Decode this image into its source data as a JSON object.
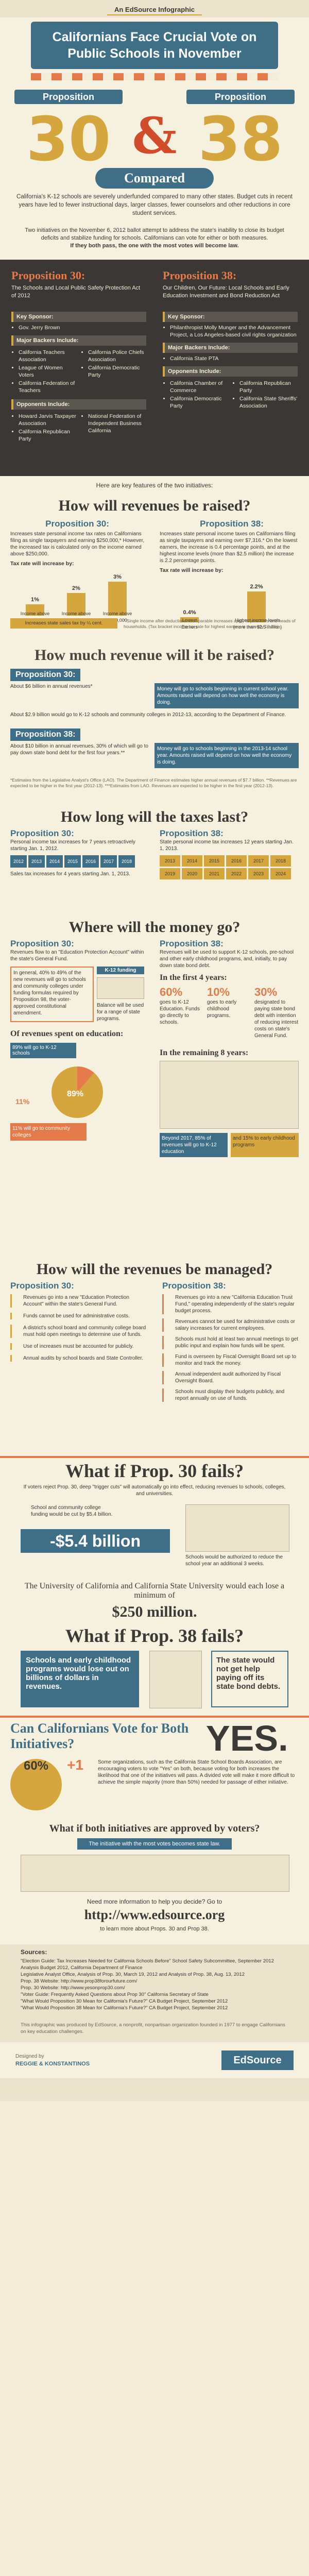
{
  "header": {
    "label": "An EdSource Infographic",
    "title": "Californians Face Crucial Vote on Public Schools in November",
    "prop_left": "Proposition",
    "prop_right": "Proposition",
    "num_left": "30",
    "num_right": "38",
    "amp": "&",
    "compared": "Compared",
    "intro": "California's K-12 schools are severely underfunded compared to many other states. Budget cuts in recent years have led to fewer instructional days, larger classes, fewer counselors and other reductions in core student services.",
    "intro2": "Two initiatives on the November 6, 2012 ballot attempt to address the state's inability to close its budget deficits and stabilize funding for schools. Californians can vote for either or both measures.",
    "intro2_em": "If they both pass, the one with the most votes will become law."
  },
  "cards": {
    "left": {
      "title": "Proposition 30:",
      "subtitle": "The Schools and Local Public Safety Protection Act of 2012",
      "key_sponsor_label": "Key Sponsor:",
      "key_sponsor": [
        "Gov. Jerry Brown"
      ],
      "backers_label": "Major Backers Include:",
      "backers_a": [
        "California Teachers Association",
        "League of Women Voters",
        "California Federation of Teachers"
      ],
      "backers_b": [
        "California Police Chiefs Association",
        "California Democratic Party"
      ],
      "opponents_label": "Opponents Include:",
      "opponents_a": [
        "Howard Jarvis Taxpayer Association",
        "California Republican Party"
      ],
      "opponents_b": [
        "National Federation of Independent Business California"
      ]
    },
    "right": {
      "title": "Proposition 38:",
      "subtitle": "Our Children, Our Future: Local Schools and Early Education Investment and Bond Reduction Act",
      "key_sponsor_label": "Key Sponsor:",
      "key_sponsor": [
        "Philanthropist Molly Munger and the Advancement Project, a Los Angeles-based civil rights organization"
      ],
      "backers_label": "Major Backers Include:",
      "backers_a": [
        "California State PTA"
      ],
      "backers_b": [],
      "opponents_label": "Opponents Include:",
      "opponents_a": [
        "California Chamber of Commerce",
        "California Democratic Party"
      ],
      "opponents_b": [
        "California Republican Party",
        "California State Sheriffs' Association"
      ]
    }
  },
  "key_features": "Here are key features of the two initiatives:",
  "raised": {
    "heading": "How will revenues be raised?",
    "p30": "Proposition 30:",
    "p38": "Proposition 38:",
    "left_text": "Increases state personal income tax rates on Californians filing as single taxpayers and earning $250,000,* However, the increased tax is calculated only on the income earned above $250,000.",
    "left_tax_label": "Tax rate will increase by:",
    "left_bars": [
      {
        "label": "Income above $250,000",
        "value": "1%"
      },
      {
        "label": "Income above $300,000",
        "value": "2%"
      },
      {
        "label": "Income above $500,000",
        "value": "3%"
      }
    ],
    "left_note": "Increases state sales tax by ¼ cent.",
    "left_foot": "* Single income after deductions. Comparable increases apply to joint filers and heads of households. (Tax bracket income tax rate for highest earners is currently 10.3%)",
    "right_text": "Increases state personal income taxes on Californians filing as single taxpayers and earning over $7,316.* On the lowest earners, the increase is 0.4 percentage points, and at the highest income levels (more than $2.5 million) the increase is 2.2 percentage points.",
    "right_tax_label": "Tax rate will increase by:",
    "right_bars": [
      {
        "label": "Lowest Earners",
        "value": "0.4%"
      },
      {
        "label": "Highest income levels (more than $2.5 million)",
        "value": "2.2%"
      }
    ]
  },
  "how_much": {
    "heading": "How much revenue will it be raised?",
    "p30_label": "Proposition 30:",
    "p30_a": "About $6 billion in annual revenues*",
    "p30_a_box": "Money will go to schools beginning in current school year. Amounts raised will depend on how well the economy is doing.",
    "p30_b": "About $2.9 billion would go to K-12 schools and community colleges in 2012-13, according to the Department of Finance.",
    "p38_label": "Proposition 38:",
    "p38_a": "About $10 billion in annual revenues. 30% of which will go to pay down state bond debt for the first four years.**",
    "p38_a_box": "Money will go to schools beginning in the 2013-14 school year. Amounts raised will depend on how well the economy is doing.",
    "foot": "*Estimates from the Legislative Analyst's Office (LAO). The Department of Finance estimates higher annual revenues of $7.7 billion. **Revenues are expected to be higher in the first year (2012-13). ***Estimates from LAO. Revenues are expected to be higher in the first year (2012-13)."
  },
  "taxes_last": {
    "heading": "How long will the taxes last?",
    "p30_label": "Proposition 30:",
    "p30_a": "Personal income tax increases for 7 years retroactively starting Jan. 1, 2012.",
    "p30_b": "Sales tax increases for 4 years starting Jan. 1, 2013.",
    "p38_label": "Proposition 38:",
    "p38_a": "State personal income tax increases 12 years starting Jan. 1, 2013.",
    "years_30": [
      "2012",
      "2013",
      "2014",
      "2015",
      "2016",
      "2017",
      "2018"
    ],
    "years_38": [
      "2013",
      "2014",
      "2015",
      "2016",
      "2017",
      "2018",
      "2019",
      "2020",
      "2021",
      "2022",
      "2023",
      "2024"
    ]
  },
  "money_go": {
    "heading": "Where will the money go?",
    "p30_label": "Proposition 30:",
    "p30_a": "Revenues flow to an \"Education Protection Account\" within the state's General Fund.",
    "p30_b": "In general, 40% to 49% of the new revenues will go to schools and community colleges under funding formulas required by Proposition 98, the voter-approved constitutional amendment.",
    "p30_c": "K-12 funding",
    "p30_d": "Balance will be used for a range of state programs.",
    "p30_e": "Of revenues spent on education:",
    "p30_f": "89% will go to K-12 schools",
    "p30_g": "11% will go to community colleges",
    "pct_89": "89%",
    "pct_11": "11%",
    "p38_label": "Proposition 38:",
    "p38_a": "Revenues will be used to support K-12 schools, pre-school and other early childhood programs, and, initially, to pay down state bond debt.",
    "p38_b": "In the first 4 years:",
    "p38_first": [
      {
        "value": "60%",
        "label": "goes to K-12 Education. Funds go directly to schools."
      },
      {
        "value": "10%",
        "label": "goes to early childhood programs."
      },
      {
        "value": "30%",
        "label": "designated to paying state bond debt with intention of reducing interest costs on state's General Fund."
      }
    ],
    "p38_c": "In the remaining 8 years:",
    "p38_rem": [
      {
        "value": "85%",
        "label": "Beyond 2017, 85% of revenues will go to K-12 education"
      },
      {
        "value": "15%",
        "label": "and 15% to early childhood programs"
      }
    ]
  },
  "managed": {
    "heading": "How will the revenues be managed?",
    "p30_label": "Proposition 30:",
    "p30_items": [
      "Revenues go into a new \"Education Protection Account\" within the state's General Fund.",
      "Funds cannot be used for administrative costs.",
      "A district's school board and community college board must hold open meetings to determine use of funds.",
      "Use of increases must be accounted for publicly.",
      "Annual audits by school boards and State Controller."
    ],
    "p38_label": "Proposition 38:",
    "p38_items": [
      "Revenues go into a new \"California Education Trust Fund,\" operating independently of the state's regular budget process.",
      "Revenues cannot be used for administrative costs or salary increases for current employees.",
      "Schools must hold at least two annual meetings to get public input and explain how funds will be spent.",
      "Fund is overseen by Fiscal Oversight Board set up to monitor and track the money.",
      "Annual independent audit authorized by Fiscal Oversight Board.",
      "Schools must display their budgets publicly, and report annually on use of funds."
    ]
  },
  "fails30": {
    "heading": "What if Prop. 30 fails?",
    "text": "If voters reject Prop. 30, deep \"trigger cuts\" will automatically go into effect, reducing revenues to schools, colleges, and universities.",
    "amount": "-$5.4 billion",
    "left_text": "School and community college funding would be cut by $5.4 billion.",
    "right_text": "Schools would be authorized to reduce the school year an additional 3 weeks.",
    "uc_text": "The University of California and California State University would each lose a minimum of",
    "uc_amount": "$250 million."
  },
  "fails38": {
    "heading": "What if Prop. 38 fails?",
    "left": "Schools and early childhood programs would lose out on billions of dollars in revenues.",
    "right": "The state would not get help paying off its state bond debts."
  },
  "both": {
    "heading": "Can Californians Vote for Both Initiatives?",
    "yes": "YES.",
    "pct": "60%",
    "plus": "+1",
    "text": "Some organizations, such as the California State School Boards Association, are encouraging voters to vote \"Yes\" on both, because voting for both increases the likelihood that one of the initiatives will pass. A divided vote will make it more difficult to achieve the simple majority (more than 50%) needed for passage of either initiative."
  },
  "approved": {
    "heading": "What if both initiatives are approved by voters?",
    "text": "The initiative with the most votes becomes state law."
  },
  "more": {
    "label": "Need more information to help you decide? Go to",
    "url": "http://www.edsource.org",
    "sub": "to learn more about Props. 30 and Prop 38."
  },
  "sources": {
    "label": "Sources:",
    "items": [
      "\"Election Guide: Tax Increases Needed for California Schools Before\" School Safety Subcommittee, September 2012",
      "Analysis Budget 2012, California Department of Finance",
      "Legislative Analyst Office, Analysis of Prop. 30, March 19, 2012 and Analysis of Prop. 38, Aug. 13, 2012",
      "Prop. 38 Website: http://www.prop38forourfuture.com/",
      "Prop. 30 Website: http://www.yesonprop30.com/",
      "\"Voter Guide: Frequently Asked Questions about Prop 30\" California Secretary of State",
      "\"What Would Proposition 30 Mean for California's Future?\" CA Budget Project, September 2012",
      "\"What Would Proposition 38 Mean for California's Future?\" CA Budget Project, September 2012"
    ],
    "footer": "This infographic was produced by EdSource, a nonprofit, nonpartisan organization founded in 1977 to engage Californians on key education challenges.",
    "designed_by": "Designed by",
    "designer": "REGGIE & KONSTANTINOS",
    "brand": "EdSource"
  },
  "colors": {
    "navy": "#3f6f86",
    "gold": "#d6a63e",
    "orange": "#e57a4a",
    "red": "#d24b2a",
    "dark": "#3a3734",
    "cream": "#f6f0df"
  }
}
